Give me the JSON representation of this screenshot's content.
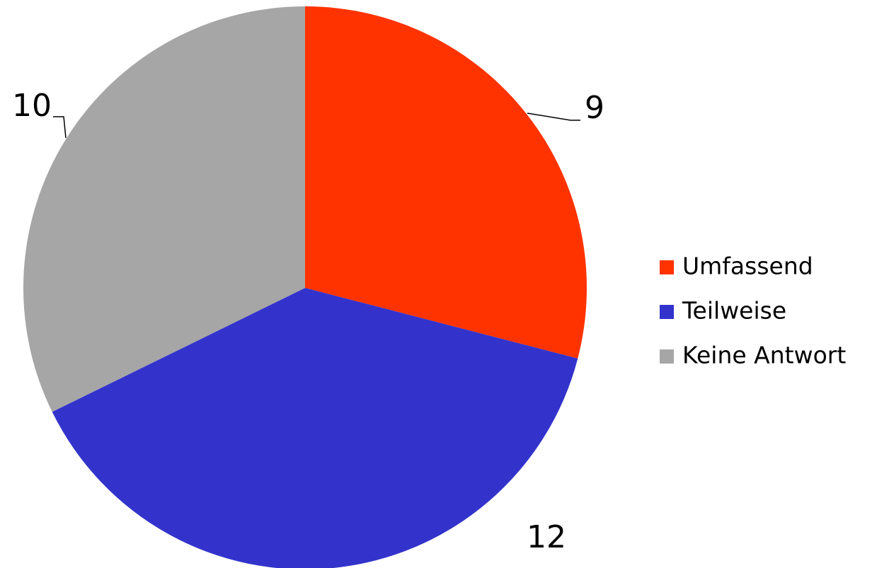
{
  "chart_data": {
    "type": "pie",
    "categories": [
      "Umfassend",
      "Teilweise",
      "Keine Antwort"
    ],
    "values": [
      9,
      12,
      10
    ],
    "colors": [
      "#ff3300",
      "#3333cc",
      "#a6a6a6"
    ],
    "legend": "right"
  }
}
